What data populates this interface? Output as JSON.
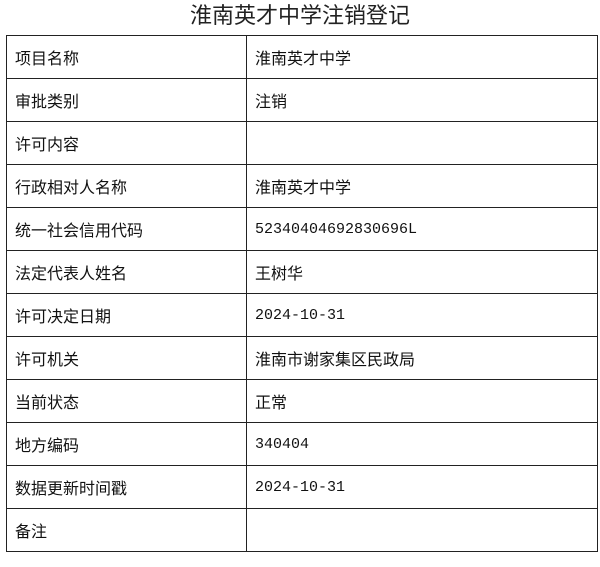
{
  "title": "淮南英才中学注销登记",
  "rows": [
    {
      "label": "项目名称",
      "value": "淮南英才中学"
    },
    {
      "label": "审批类别",
      "value": "注销"
    },
    {
      "label": "许可内容",
      "value": ""
    },
    {
      "label": "行政相对人名称",
      "value": "淮南英才中学"
    },
    {
      "label": "统一社会信用代码",
      "value": "52340404692830696L"
    },
    {
      "label": "法定代表人姓名",
      "value": "王树华"
    },
    {
      "label": "许可决定日期",
      "value": "2024-10-31"
    },
    {
      "label": "许可机关",
      "value": "淮南市谢家集区民政局"
    },
    {
      "label": "当前状态",
      "value": "正常"
    },
    {
      "label": "地方编码",
      "value": "340404"
    },
    {
      "label": "数据更新时间戳",
      "value": "2024-10-31"
    },
    {
      "label": "备注",
      "value": ""
    }
  ]
}
